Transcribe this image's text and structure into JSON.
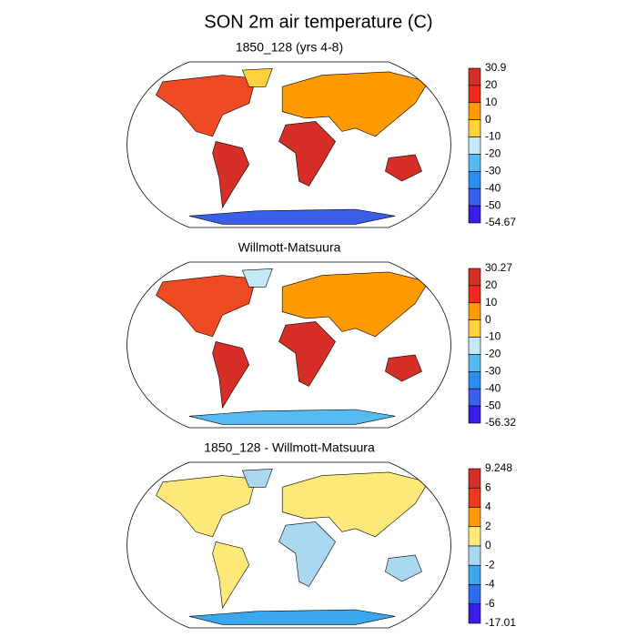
{
  "title": "SON 2m air temperature (C)",
  "panels": [
    {
      "title": "1850_128 (yrs 4-8)",
      "colorbar": {
        "labels": [
          "30.9",
          "20",
          "10",
          "0",
          "-10",
          "-20",
          "-30",
          "-40",
          "-50",
          "-54.67"
        ],
        "colors": [
          "#d62f27",
          "#f02a1e",
          "#ff9a00",
          "#ffd23b",
          "#c5e8f5",
          "#56bbf0",
          "#2a8ef0",
          "#3a5fe8",
          "#3b1de8"
        ]
      }
    },
    {
      "title": "Willmott-Matsuura",
      "colorbar": {
        "labels": [
          "30.27",
          "20",
          "10",
          "0",
          "-10",
          "-20",
          "-30",
          "-40",
          "-50",
          "-56.32"
        ],
        "colors": [
          "#d62f27",
          "#f02a1e",
          "#ff9a00",
          "#ffd23b",
          "#c5e8f5",
          "#56bbf0",
          "#2a8ef0",
          "#3a5fe8",
          "#3b1de8"
        ]
      }
    },
    {
      "title": "1850_128 - Willmott-Matsuura",
      "colorbar": {
        "labels": [
          "9.248",
          "6",
          "4",
          "2",
          "0",
          "-2",
          "-4",
          "-6",
          "-17.01"
        ],
        "colors": [
          "#d62f27",
          "#f0391e",
          "#ff9a00",
          "#fde87a",
          "#a9d8f0",
          "#3ba7ee",
          "#2a6fe8",
          "#3b1de8"
        ]
      }
    }
  ]
}
